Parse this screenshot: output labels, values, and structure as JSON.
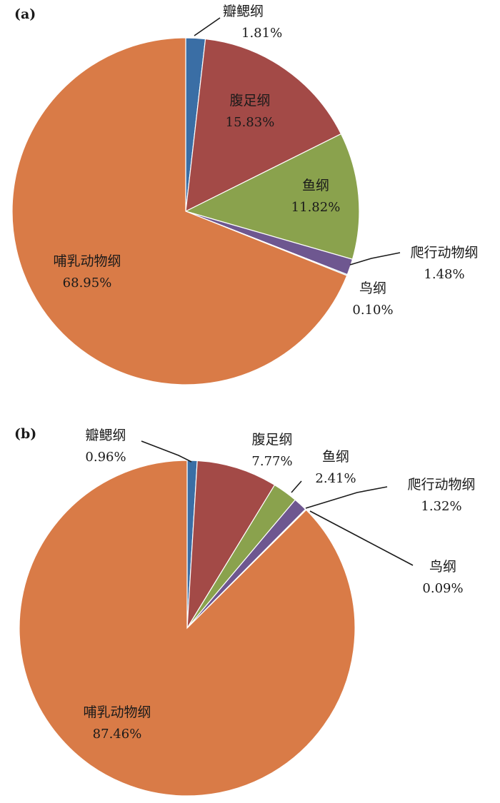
{
  "chart_data": [
    {
      "type": "pie",
      "panel_label": "(a)",
      "slices": [
        {
          "label": "瓣鳃纲",
          "value": 1.81,
          "value_label": "1.81%",
          "color": "#3a6ea5"
        },
        {
          "label": "腹足纲",
          "value": 15.83,
          "value_label": "15.83%",
          "color": "#a34a47"
        },
        {
          "label": "鱼纲",
          "value": 11.82,
          "value_label": "11.82%",
          "color": "#8aa24d"
        },
        {
          "label": "爬行动物纲",
          "value": 1.48,
          "value_label": "1.48%",
          "color": "#6e5790"
        },
        {
          "label": "鸟纲",
          "value": 0.1,
          "value_label": "0.10%",
          "color": "#3f9bb3"
        },
        {
          "label": "哺乳动物纲",
          "value": 68.95,
          "value_label": "68.95%",
          "color": "#d97b47"
        }
      ]
    },
    {
      "type": "pie",
      "panel_label": "(b)",
      "slices": [
        {
          "label": "瓣鳃纲",
          "value": 0.96,
          "value_label": "0.96%",
          "color": "#3a6ea5"
        },
        {
          "label": "腹足纲",
          "value": 7.77,
          "value_label": "7.77%",
          "color": "#a34a47"
        },
        {
          "label": "鱼纲",
          "value": 2.41,
          "value_label": "2.41%",
          "color": "#8aa24d"
        },
        {
          "label": "爬行动物纲",
          "value": 1.32,
          "value_label": "1.32%",
          "color": "#6e5790"
        },
        {
          "label": "鸟纲",
          "value": 0.09,
          "value_label": "0.09%",
          "color": "#3f9bb3"
        },
        {
          "label": "哺乳动物纲",
          "value": 87.46,
          "value_label": "87.46%",
          "color": "#d97b47"
        }
      ]
    }
  ]
}
